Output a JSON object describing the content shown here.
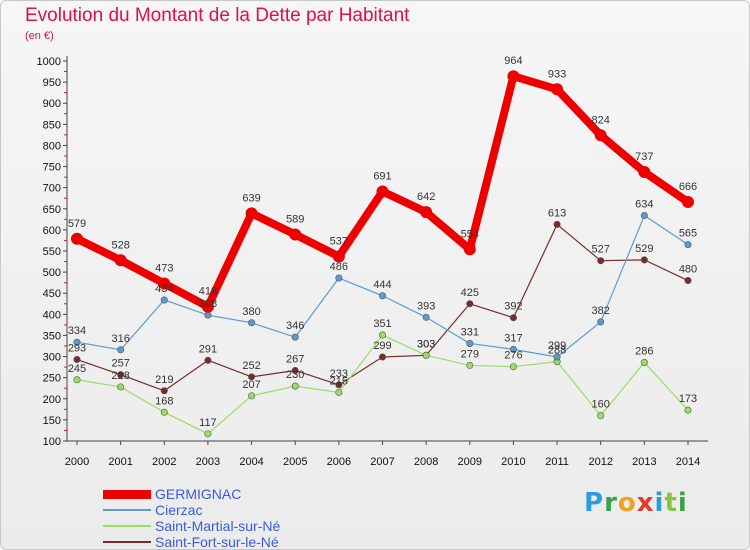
{
  "header": {
    "title": "Evolution du Montant de la Dette par Habitant",
    "unit": "(en €)"
  },
  "logo": {
    "letters": [
      "P",
      "r",
      "o",
      "x",
      "i",
      "t",
      "i"
    ]
  },
  "chart_data": {
    "type": "line",
    "title": "Evolution du Montant de la Dette par Habitant",
    "ylabel": "(en €)",
    "ylim": [
      100,
      1000
    ],
    "yticks": [
      100,
      150,
      200,
      250,
      300,
      350,
      400,
      450,
      500,
      550,
      600,
      650,
      700,
      750,
      800,
      850,
      900,
      950,
      1000
    ],
    "x": [
      "2000",
      "2001",
      "2002",
      "2003",
      "2004",
      "2005",
      "2006",
      "2007",
      "2008",
      "2009",
      "2010",
      "2011",
      "2012",
      "2013",
      "2014"
    ],
    "grid": false,
    "legend_position": "bottom-left",
    "series": [
      {
        "name": "GERMIGNAC",
        "color": "#ee0000",
        "values": [
          579,
          528,
          473,
          418,
          639,
          589,
          537,
          691,
          642,
          554,
          964,
          933,
          824,
          737,
          666
        ]
      },
      {
        "name": "Cierzac",
        "color": "#5b9bd5",
        "values": [
          334,
          316,
          434,
          398,
          380,
          346,
          486,
          444,
          393,
          331,
          317,
          299,
          382,
          634,
          565
        ]
      },
      {
        "name": "Saint-Martial-sur-Né",
        "color": "#99dd66",
        "values": [
          245,
          228,
          168,
          117,
          207,
          230,
          215,
          351,
          303,
          279,
          276,
          288,
          160,
          286,
          173
        ]
      },
      {
        "name": "Saint-Fort-sur-le-Né",
        "color": "#7a2a2a",
        "values": [
          293,
          257,
          219,
          291,
          252,
          267,
          233,
          299,
          303,
          425,
          392,
          613,
          527,
          529,
          480
        ]
      }
    ]
  }
}
